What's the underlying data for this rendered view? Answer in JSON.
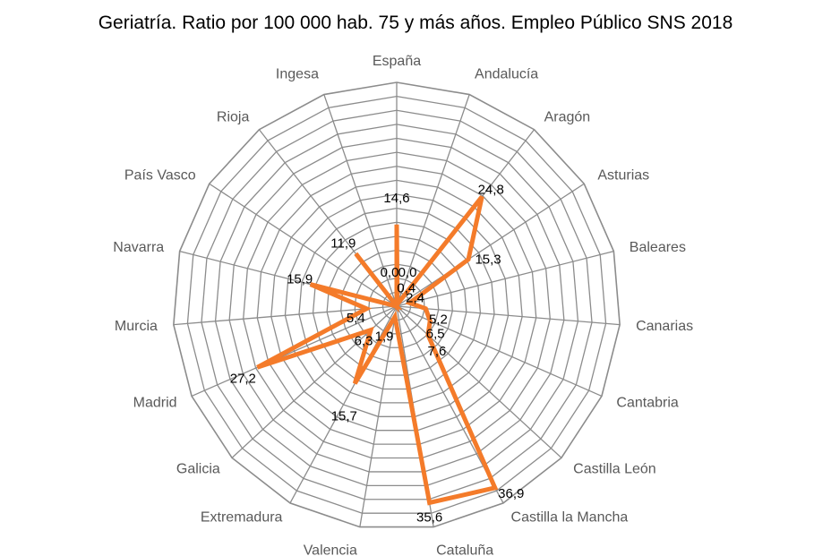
{
  "chart_data": {
    "type": "radar",
    "title": "Geriatría. Ratio por 100 000 hab.  75 y más años. Empleo Público SNS 2018",
    "categories": [
      "España",
      "Andalucía",
      "Aragón",
      "Asturias",
      "Baleares",
      "Canarias",
      "Cantabria",
      "Castilla León",
      "Castilla la Mancha",
      "Cataluña",
      "Valencia",
      "Extremadura",
      "Galicia",
      "Madrid",
      "Murcia",
      "Navarra",
      "País Vasco",
      "Rioja",
      "Ingesa"
    ],
    "values": [
      14.6,
      0.4,
      24.8,
      15.3,
      2.4,
      5.2,
      6.5,
      7.6,
      36.9,
      35.6,
      1.9,
      15.7,
      6.3,
      27.2,
      5.4,
      15.9,
      0.0,
      11.9,
      0.0
    ],
    "value_labels": [
      "14,6",
      "0,4",
      "24,8",
      "15,3",
      "2,4",
      "5,2",
      "6,5",
      "7,6",
      "36,9",
      "35,6",
      "1,9",
      "15,7",
      "6,3",
      "27,2",
      "5,4",
      "15,9",
      "0,0",
      "11,9",
      "0,0"
    ],
    "rlim": [
      0,
      40
    ],
    "ring_step": 2.5,
    "grid": true,
    "legend": "none",
    "colors": {
      "series": "#F47B2A",
      "grid": "#8C8C8C",
      "category_text": "#595959"
    }
  }
}
